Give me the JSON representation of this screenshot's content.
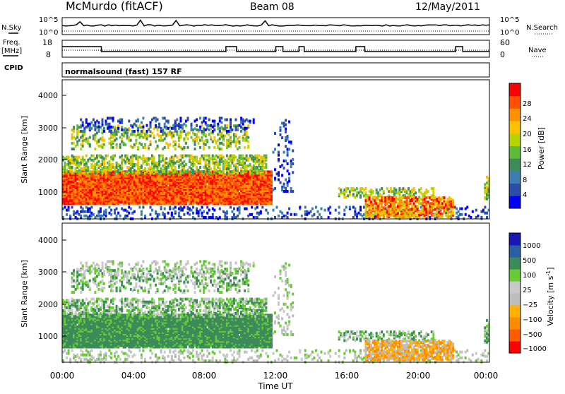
{
  "header": {
    "station": "McMurdo (fitACF)",
    "beam": "Beam 08",
    "date": "12/May/2011"
  },
  "sky_panel": {
    "left_label": "N.Sky",
    "right_label": "N.Search",
    "left_ticks": [
      "10^5",
      "10^0"
    ],
    "right_ticks": [
      "10^5",
      "10^0"
    ]
  },
  "freq_panel": {
    "left_label_1": "Freq.",
    "left_label_2": "[MHz]",
    "right_label": "Nave",
    "left_ticks": [
      "18",
      "8"
    ],
    "right_ticks": [
      "60",
      "0"
    ]
  },
  "cpid": {
    "label": "CPID",
    "program": "normalsound (fast) 157 RF"
  },
  "colors": {
    "power_scale": [
      "#0000ff",
      "#2b4ca8",
      "#3a7fb0",
      "#3f8a5a",
      "#5dbb3a",
      "#b8d400",
      "#ffc000",
      "#ff9000",
      "#ff5000",
      "#ff0000"
    ],
    "velocity_scale": [
      "#ff0000",
      "#ff5a00",
      "#ff8c00",
      "#ffb000",
      "#bdbdbd",
      "#c8c8c8",
      "#66cc33",
      "#3c8a5a",
      "#2a5fa8",
      "#1818b8"
    ]
  },
  "chart_data": [
    {
      "type": "heatmap",
      "name": "power",
      "ylabel": "Slant Range [km]",
      "yticks": [
        "1000",
        "2000",
        "3000",
        "4000"
      ],
      "ylim": [
        180,
        4500
      ],
      "xlim_hours": [
        0,
        24
      ],
      "colorbar_label": "Power [dB]",
      "colorbar_ticks": [
        "4",
        "8",
        "12",
        "16",
        "20",
        "24",
        "28"
      ],
      "clim": [
        0,
        30
      ]
    },
    {
      "type": "heatmap",
      "name": "velocity",
      "ylabel": "Slant Range [km]",
      "yticks": [
        "1000",
        "2000",
        "3000",
        "4000"
      ],
      "ylim": [
        180,
        4500
      ],
      "xlim_hours": [
        0,
        24
      ],
      "colorbar_label": "Velocity [m s^-1]",
      "colorbar_label_main": "Velocity [m s",
      "colorbar_label_exp": "-1",
      "colorbar_label_end": "]",
      "colorbar_ticks": [
        "1000",
        "500",
        "100",
        "25",
        "−25",
        "−100",
        "−500",
        "−1000"
      ]
    }
  ],
  "x_axis": {
    "ticks": [
      "00:00",
      "04:00",
      "08:00",
      "12:00",
      "16:00",
      "20:00",
      "00:00"
    ],
    "label": "Time UT"
  }
}
